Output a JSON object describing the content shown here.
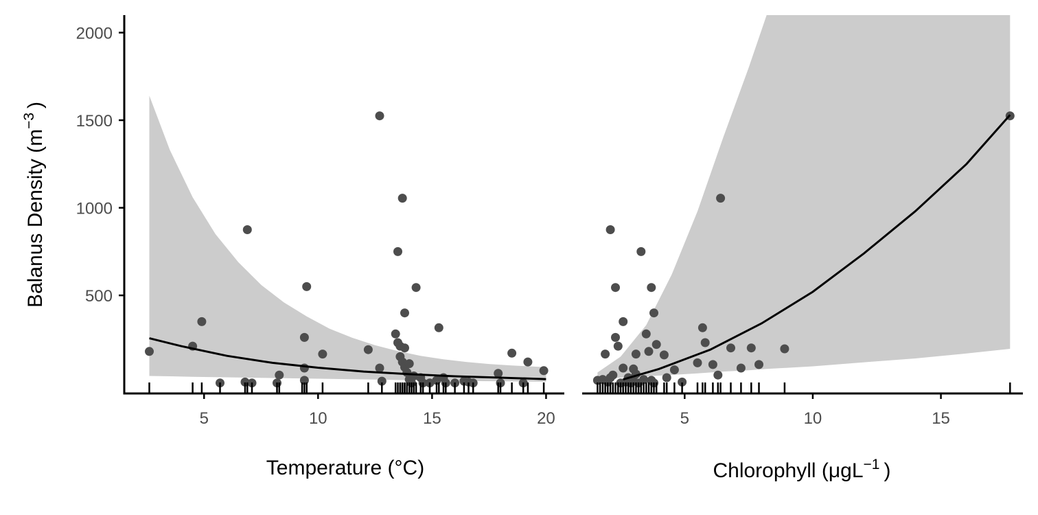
{
  "chart_data": [
    {
      "type": "scatter",
      "panel": "left",
      "xlabel": "Temperature (°C)",
      "ylabel": "Balanus Density (m",
      "ylabel_sup": "−3",
      "ylabel_end": ")",
      "xlim": [
        1.5,
        20.8
      ],
      "ylim": [
        -60,
        2100
      ],
      "x_ticks": [
        "5",
        "10",
        "15",
        "20"
      ],
      "y_ticks": [
        "500",
        "1000",
        "1500",
        "2000"
      ],
      "colors": {
        "points": "#4d4d4d",
        "ribbon": "#cccccc",
        "fit": "#000000",
        "axis": "#000000"
      },
      "points": [
        [
          2.6,
          180
        ],
        [
          4.5,
          210
        ],
        [
          4.9,
          350
        ],
        [
          5.7,
          0
        ],
        [
          6.8,
          5
        ],
        [
          6.9,
          875
        ],
        [
          7.1,
          0
        ],
        [
          8.2,
          0
        ],
        [
          8.3,
          45
        ],
        [
          9.4,
          85
        ],
        [
          9.4,
          15
        ],
        [
          9.4,
          260
        ],
        [
          9.5,
          550
        ],
        [
          10.2,
          165
        ],
        [
          12.2,
          190
        ],
        [
          12.7,
          85
        ],
        [
          12.7,
          1525
        ],
        [
          12.8,
          10
        ],
        [
          13.4,
          280
        ],
        [
          13.5,
          230
        ],
        [
          13.5,
          750
        ],
        [
          13.6,
          210
        ],
        [
          13.6,
          150
        ],
        [
          13.7,
          120
        ],
        [
          13.7,
          1055
        ],
        [
          13.8,
          90
        ],
        [
          13.8,
          400
        ],
        [
          13.8,
          200
        ],
        [
          13.9,
          60
        ],
        [
          14.0,
          110
        ],
        [
          14.0,
          20
        ],
        [
          14.1,
          0
        ],
        [
          14.2,
          40
        ],
        [
          14.3,
          545
        ],
        [
          14.5,
          30
        ],
        [
          14.6,
          0
        ],
        [
          14.9,
          0
        ],
        [
          15.2,
          15
        ],
        [
          15.3,
          315
        ],
        [
          15.5,
          30
        ],
        [
          15.6,
          0
        ],
        [
          16.0,
          0
        ],
        [
          16.4,
          10
        ],
        [
          16.6,
          5
        ],
        [
          16.8,
          0
        ],
        [
          17.9,
          55
        ],
        [
          18.0,
          0
        ],
        [
          18.5,
          170
        ],
        [
          19.0,
          0
        ],
        [
          19.2,
          120
        ],
        [
          19.9,
          70
        ]
      ],
      "fit_curve": [
        [
          2.6,
          255
        ],
        [
          4,
          210
        ],
        [
          6,
          155
        ],
        [
          8,
          115
        ],
        [
          10,
          87
        ],
        [
          12,
          65
        ],
        [
          14,
          50
        ],
        [
          16,
          38
        ],
        [
          18,
          30
        ],
        [
          20,
          22
        ]
      ],
      "ribbon": [
        [
          2.6,
          40,
          1640
        ],
        [
          3.5,
          38,
          1330
        ],
        [
          4.5,
          35,
          1060
        ],
        [
          5.5,
          33,
          850
        ],
        [
          6.5,
          31,
          690
        ],
        [
          7.5,
          29,
          560
        ],
        [
          8.5,
          27,
          460
        ],
        [
          9.5,
          25,
          380
        ],
        [
          10.5,
          23,
          310
        ],
        [
          11.5,
          21,
          258
        ],
        [
          12.5,
          19,
          215
        ],
        [
          13.5,
          17,
          182
        ],
        [
          14.5,
          15,
          155
        ],
        [
          15.5,
          13,
          135
        ],
        [
          16.5,
          11,
          120
        ],
        [
          17.5,
          10,
          108
        ],
        [
          18.5,
          9,
          100
        ],
        [
          20,
          7,
          90
        ]
      ],
      "rug": [
        2.6,
        4.5,
        4.9,
        5.7,
        6.8,
        6.9,
        7.1,
        8.2,
        8.3,
        9.3,
        9.4,
        9.5,
        10.2,
        12.2,
        12.8,
        13.4,
        13.5,
        13.6,
        13.6,
        13.7,
        13.7,
        13.8,
        13.8,
        13.9,
        14.0,
        14.1,
        14.2,
        14.3,
        14.5,
        14.6,
        14.9,
        15.2,
        15.3,
        15.5,
        15.6,
        16.0,
        16.4,
        16.6,
        16.8,
        17.9,
        18.0,
        18.5,
        19.0,
        19.2,
        19.9
      ]
    },
    {
      "type": "scatter",
      "panel": "right",
      "xlabel": "Chlorophyll (μgL",
      "xlabel_sup": "−1",
      "xlabel_end": ")",
      "xlim": [
        1.0,
        18.2
      ],
      "ylim": [
        -60,
        2100
      ],
      "x_ticks": [
        "5",
        "10",
        "15"
      ],
      "colors": {
        "points": "#4d4d4d",
        "ribbon": "#cccccc",
        "fit": "#000000",
        "axis": "#000000"
      },
      "points": [
        [
          1.6,
          15
        ],
        [
          1.8,
          20
        ],
        [
          1.9,
          165
        ],
        [
          2.0,
          5
        ],
        [
          2.1,
          875
        ],
        [
          2.1,
          30
        ],
        [
          2.2,
          45
        ],
        [
          2.3,
          545
        ],
        [
          2.3,
          260
        ],
        [
          2.4,
          210
        ],
        [
          2.5,
          0
        ],
        [
          2.6,
          85
        ],
        [
          2.6,
          350
        ],
        [
          2.7,
          5
        ],
        [
          2.8,
          30
        ],
        [
          2.9,
          0
        ],
        [
          3.0,
          80
        ],
        [
          3.0,
          10
        ],
        [
          3.1,
          50
        ],
        [
          3.1,
          165
        ],
        [
          3.2,
          0
        ],
        [
          3.3,
          750
        ],
        [
          3.4,
          20
        ],
        [
          3.5,
          280
        ],
        [
          3.6,
          180
        ],
        [
          3.7,
          545
        ],
        [
          3.7,
          15
        ],
        [
          3.8,
          400
        ],
        [
          3.8,
          0
        ],
        [
          3.9,
          220
        ],
        [
          4.2,
          160
        ],
        [
          4.3,
          30
        ],
        [
          4.6,
          75
        ],
        [
          4.9,
          5
        ],
        [
          5.5,
          115
        ],
        [
          5.7,
          315
        ],
        [
          5.8,
          230
        ],
        [
          6.1,
          105
        ],
        [
          6.3,
          45
        ],
        [
          6.4,
          1055
        ],
        [
          6.8,
          200
        ],
        [
          7.2,
          85
        ],
        [
          7.6,
          200
        ],
        [
          7.9,
          105
        ],
        [
          8.9,
          195
        ],
        [
          17.7,
          1525
        ]
      ],
      "fit_curve": [
        [
          2.6,
          20
        ],
        [
          4,
          80
        ],
        [
          6,
          190
        ],
        [
          8,
          340
        ],
        [
          10,
          520
        ],
        [
          12,
          740
        ],
        [
          14,
          980
        ],
        [
          16,
          1250
        ],
        [
          17.7,
          1530
        ]
      ],
      "ribbon": [
        [
          1.6,
          20,
          60
        ],
        [
          2.5,
          30,
          150
        ],
        [
          3.5,
          38,
          330
        ],
        [
          4.5,
          46,
          620
        ],
        [
          5.5,
          55,
          980
        ],
        [
          6.5,
          65,
          1400
        ],
        [
          7.5,
          72,
          1800
        ],
        [
          8.2,
          80,
          2100
        ],
        [
          10,
          95,
          2100
        ],
        [
          12,
          118,
          2100
        ],
        [
          14,
          140,
          2100
        ],
        [
          16,
          168,
          2100
        ],
        [
          17.7,
          195,
          2100
        ]
      ],
      "rug": [
        1.6,
        1.7,
        1.8,
        1.9,
        2.0,
        2.1,
        2.2,
        2.3,
        2.4,
        2.5,
        2.6,
        2.7,
        2.8,
        2.9,
        3.0,
        3.1,
        3.2,
        3.3,
        3.4,
        3.5,
        3.6,
        3.7,
        3.8,
        3.9,
        4.2,
        4.3,
        4.6,
        4.9,
        5.5,
        5.7,
        5.8,
        6.1,
        6.3,
        6.4,
        6.8,
        7.2,
        7.6,
        7.9,
        8.9,
        17.7
      ]
    }
  ]
}
